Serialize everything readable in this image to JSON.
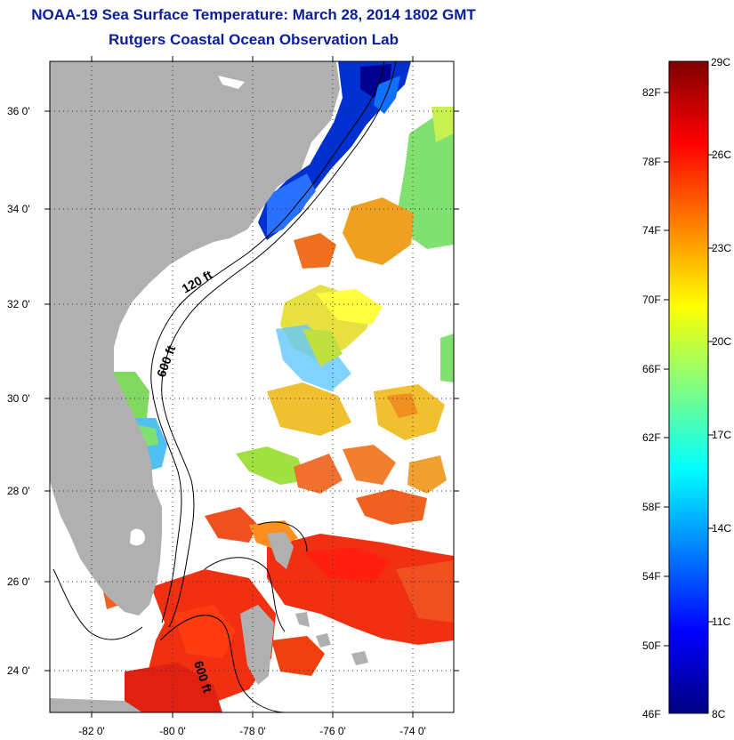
{
  "header": {
    "title": "NOAA-19 Sea Surface Temperature:  March 28, 2014 1802 GMT",
    "subtitle": "Rutgers Coastal Ocean Observation Lab"
  },
  "map": {
    "lat_ticks": [
      "36 0'",
      "34 0'",
      "32 0'",
      "30 0'",
      "28 0'",
      "26 0'",
      "24 0'"
    ],
    "lon_ticks": [
      "-82 0'",
      "-80 0'",
      "-78 0'",
      "-76 0'",
      "-74 0'"
    ],
    "contour_labels": [
      "120 ft",
      "600 ft",
      "600 ft"
    ]
  },
  "colorbar": {
    "fahrenheit_labels": [
      "82F",
      "78F",
      "74F",
      "70F",
      "66F",
      "62F",
      "58F",
      "54F",
      "50F",
      "46F"
    ],
    "celsius_labels": [
      "29C",
      "26C",
      "23C",
      "20C",
      "17C",
      "14C",
      "11C",
      "8C"
    ],
    "colors": [
      "#000080",
      "#0000ff",
      "#0080ff",
      "#00ffff",
      "#80ff80",
      "#ffff00",
      "#ff8000",
      "#ff0000",
      "#800000"
    ]
  },
  "colors": {
    "title": "#0a1e9c",
    "land": "#b0b0b0"
  }
}
